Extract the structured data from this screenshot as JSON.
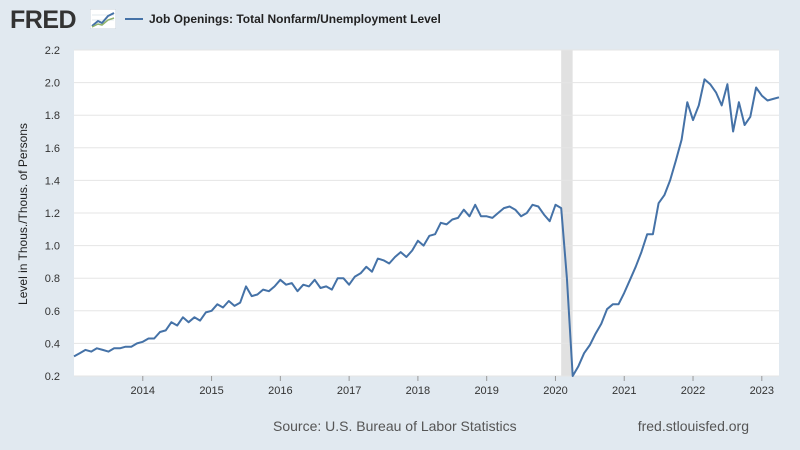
{
  "header": {
    "logo_text": "FRED",
    "logo_icon": "fred-line-graph-icon",
    "legend_label": "Job Openings: Total Nonfarm/Unemployment Level"
  },
  "footer": {
    "source": "Source: U.S. Bureau of Labor Statistics",
    "site": "fred.stlouisfed.org"
  },
  "colors": {
    "series": "#4572a7",
    "plot_bg": "#ffffff",
    "page_bg": "#e1e9f0",
    "recession": "#e1e1e1",
    "grid": "#e5e5e5"
  },
  "chart_data": {
    "type": "line",
    "title": "",
    "ylabel": "Level in Thous./Thous. of Persons",
    "xlabel": "",
    "ylim": [
      0.2,
      2.2
    ],
    "xlim": [
      "2013-01",
      "2023-04"
    ],
    "yticks": [
      "0.2",
      "0.4",
      "0.6",
      "0.8",
      "1.0",
      "1.2",
      "1.4",
      "1.6",
      "1.8",
      "2.0",
      "2.2"
    ],
    "xticks": [
      "2014",
      "2015",
      "2016",
      "2017",
      "2018",
      "2019",
      "2020",
      "2021",
      "2022",
      "2023"
    ],
    "grid": "horizontal",
    "legend": "top-left",
    "recessions": [
      {
        "start": "2020-02",
        "end": "2020-04"
      }
    ],
    "series": [
      {
        "name": "Job Openings: Total Nonfarm/Unemployment Level",
        "x": [
          "2013-01",
          "2013-02",
          "2013-03",
          "2013-04",
          "2013-05",
          "2013-06",
          "2013-07",
          "2013-08",
          "2013-09",
          "2013-10",
          "2013-11",
          "2013-12",
          "2014-01",
          "2014-02",
          "2014-03",
          "2014-04",
          "2014-05",
          "2014-06",
          "2014-07",
          "2014-08",
          "2014-09",
          "2014-10",
          "2014-11",
          "2014-12",
          "2015-01",
          "2015-02",
          "2015-03",
          "2015-04",
          "2015-05",
          "2015-06",
          "2015-07",
          "2015-08",
          "2015-09",
          "2015-10",
          "2015-11",
          "2015-12",
          "2016-01",
          "2016-02",
          "2016-03",
          "2016-04",
          "2016-05",
          "2016-06",
          "2016-07",
          "2016-08",
          "2016-09",
          "2016-10",
          "2016-11",
          "2016-12",
          "2017-01",
          "2017-02",
          "2017-03",
          "2017-04",
          "2017-05",
          "2017-06",
          "2017-07",
          "2017-08",
          "2017-09",
          "2017-10",
          "2017-11",
          "2017-12",
          "2018-01",
          "2018-02",
          "2018-03",
          "2018-04",
          "2018-05",
          "2018-06",
          "2018-07",
          "2018-08",
          "2018-09",
          "2018-10",
          "2018-11",
          "2018-12",
          "2019-01",
          "2019-02",
          "2019-03",
          "2019-04",
          "2019-05",
          "2019-06",
          "2019-07",
          "2019-08",
          "2019-09",
          "2019-10",
          "2019-11",
          "2019-12",
          "2020-01",
          "2020-02",
          "2020-03",
          "2020-04",
          "2020-05",
          "2020-06",
          "2020-07",
          "2020-08",
          "2020-09",
          "2020-10",
          "2020-11",
          "2020-12",
          "2021-01",
          "2021-02",
          "2021-03",
          "2021-04",
          "2021-05",
          "2021-06",
          "2021-07",
          "2021-08",
          "2021-09",
          "2021-10",
          "2021-11",
          "2021-12",
          "2022-01",
          "2022-02",
          "2022-03",
          "2022-04",
          "2022-05",
          "2022-06",
          "2022-07",
          "2022-08",
          "2022-09",
          "2022-10",
          "2022-11",
          "2022-12",
          "2023-01",
          "2023-02",
          "2023-03",
          "2023-04"
        ],
        "values": [
          0.32,
          0.34,
          0.36,
          0.35,
          0.37,
          0.36,
          0.35,
          0.37,
          0.37,
          0.38,
          0.38,
          0.4,
          0.41,
          0.43,
          0.43,
          0.47,
          0.48,
          0.53,
          0.51,
          0.56,
          0.53,
          0.56,
          0.54,
          0.59,
          0.6,
          0.64,
          0.62,
          0.66,
          0.63,
          0.65,
          0.75,
          0.69,
          0.7,
          0.73,
          0.72,
          0.75,
          0.79,
          0.76,
          0.77,
          0.72,
          0.76,
          0.75,
          0.79,
          0.74,
          0.75,
          0.73,
          0.8,
          0.8,
          0.76,
          0.81,
          0.83,
          0.87,
          0.84,
          0.92,
          0.91,
          0.89,
          0.93,
          0.96,
          0.93,
          0.97,
          1.03,
          1.0,
          1.06,
          1.07,
          1.14,
          1.13,
          1.16,
          1.17,
          1.22,
          1.18,
          1.25,
          1.18,
          1.18,
          1.17,
          1.2,
          1.23,
          1.24,
          1.22,
          1.18,
          1.2,
          1.25,
          1.24,
          1.19,
          1.15,
          1.25,
          1.23,
          0.8,
          0.2,
          0.26,
          0.34,
          0.39,
          0.46,
          0.52,
          0.61,
          0.64,
          0.64,
          0.71,
          0.79,
          0.87,
          0.96,
          1.07,
          1.07,
          1.26,
          1.31,
          1.4,
          1.52,
          1.65,
          1.88,
          1.77,
          1.86,
          2.02,
          1.99,
          1.94,
          1.86,
          1.99,
          1.7,
          1.88,
          1.74,
          1.79,
          1.97,
          1.92,
          1.89,
          1.9,
          1.91
        ]
      }
    ]
  }
}
